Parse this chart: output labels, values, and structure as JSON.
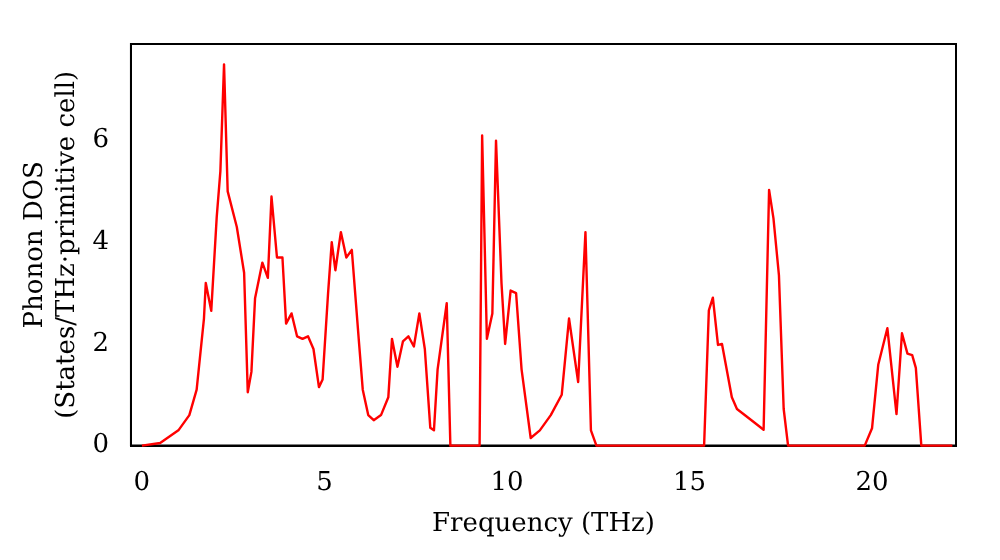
{
  "chart_data": {
    "type": "line",
    "xlabel": "Frequency (THz)",
    "ylabel": "Phonon DOS\n(States/THz·primitive cell)",
    "x": [
      0,
      0.5,
      1,
      1.3,
      1.5,
      1.7,
      1.75,
      1.9,
      2.05,
      2.15,
      2.25,
      2.35,
      2.6,
      2.8,
      2.9,
      3.0,
      3.1,
      3.3,
      3.45,
      3.55,
      3.7,
      3.85,
      3.95,
      4.1,
      4.25,
      4.4,
      4.55,
      4.7,
      4.85,
      4.95,
      5.1,
      5.2,
      5.3,
      5.45,
      5.6,
      5.75,
      5.95,
      6.05,
      6.2,
      6.35,
      6.55,
      6.75,
      6.85,
      7.0,
      7.15,
      7.3,
      7.45,
      7.6,
      7.75,
      7.9,
      8.0,
      8.1,
      8.35,
      8.45,
      9.25,
      9.32,
      9.45,
      9.6,
      9.7,
      9.85,
      9.95,
      10.1,
      10.25,
      10.4,
      10.65,
      10.9,
      11.2,
      11.5,
      11.7,
      11.95,
      12.15,
      12.3,
      12.45,
      15.4,
      15.53,
      15.64,
      15.78,
      15.89,
      16.16,
      16.3,
      16.75,
      17.03,
      17.18,
      17.3,
      17.45,
      17.58,
      17.7,
      19.8,
      20.0,
      20.17,
      20.42,
      20.67,
      20.82,
      20.97,
      21.1,
      21.2,
      21.35,
      22.2
    ],
    "series": [
      {
        "color": "#ff0000",
        "values": [
          0,
          0.05,
          0.3,
          0.6,
          1.1,
          2.5,
          3.2,
          2.65,
          4.5,
          5.4,
          7.5,
          5.0,
          4.3,
          3.4,
          1.05,
          1.45,
          2.9,
          3.6,
          3.3,
          4.9,
          3.7,
          3.7,
          2.4,
          2.6,
          2.15,
          2.1,
          2.15,
          1.9,
          1.15,
          1.3,
          3.0,
          4.0,
          3.45,
          4.2,
          3.7,
          3.85,
          2.0,
          1.1,
          0.6,
          0.5,
          0.6,
          0.95,
          2.1,
          1.55,
          2.05,
          2.15,
          1.95,
          2.6,
          1.9,
          0.35,
          0.3,
          1.5,
          2.8,
          0,
          0,
          6.1,
          2.1,
          2.6,
          6.0,
          3.2,
          2.0,
          3.05,
          3.0,
          1.5,
          0.15,
          0.3,
          0.6,
          1.0,
          2.5,
          1.25,
          4.2,
          0.3,
          0,
          0,
          2.66,
          2.91,
          1.98,
          2.0,
          0.95,
          0.72,
          0.47,
          0.31,
          5.03,
          4.47,
          3.35,
          0.72,
          0,
          0,
          0.34,
          1.59,
          2.31,
          0.62,
          2.21,
          1.81,
          1.78,
          1.53,
          0,
          0
        ]
      }
    ],
    "xlim": [
      -0.3,
      22.3
    ],
    "ylim": [
      0,
      7.9
    ],
    "xticks": [
      0,
      5,
      10,
      15,
      20
    ],
    "yticks": [
      0,
      2,
      4,
      6
    ],
    "grid": false,
    "legend": false,
    "marker": "none",
    "line_style": "solid"
  }
}
